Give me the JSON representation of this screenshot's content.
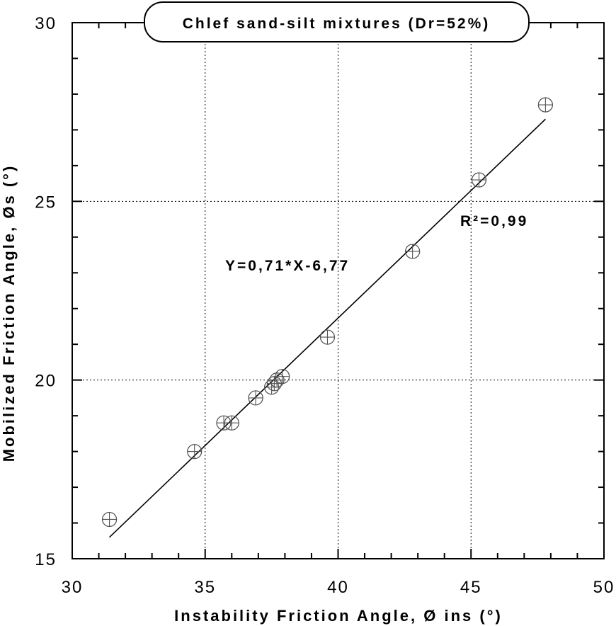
{
  "chart_data": {
    "type": "scatter",
    "title": "Chlef sand-silt mixtures (Dr=52%)",
    "xlabel": "Instability Friction Angle,  Ø ins (°)",
    "ylabel": "Mobilized Friction Angle, Øs (°)",
    "xlim": [
      30,
      50
    ],
    "ylim": [
      15,
      30
    ],
    "x_ticks": [
      30,
      35,
      40,
      45,
      50
    ],
    "y_ticks": [
      15,
      20,
      25,
      30
    ],
    "x_tick_labels": [
      "30",
      "35",
      "40",
      "45",
      "50"
    ],
    "y_tick_labels": [
      "15",
      "20",
      "25",
      "30"
    ],
    "grid": true,
    "series": [
      {
        "marker": "circle-plus",
        "x": [
          31.4,
          34.6,
          35.7,
          36.0,
          36.9,
          37.5,
          37.6,
          37.7,
          37.9,
          39.6,
          42.8,
          45.3,
          47.8
        ],
        "y": [
          16.1,
          18.0,
          18.8,
          18.8,
          19.5,
          19.8,
          19.9,
          20.0,
          20.1,
          21.2,
          23.6,
          25.6,
          27.7
        ]
      }
    ],
    "fit_line": {
      "x": [
        31.4,
        47.8
      ],
      "y": [
        15.6,
        27.3
      ]
    },
    "annotations": {
      "equation": "Y=0,71*X-6,77",
      "r_squared": "R²=0,99"
    }
  }
}
